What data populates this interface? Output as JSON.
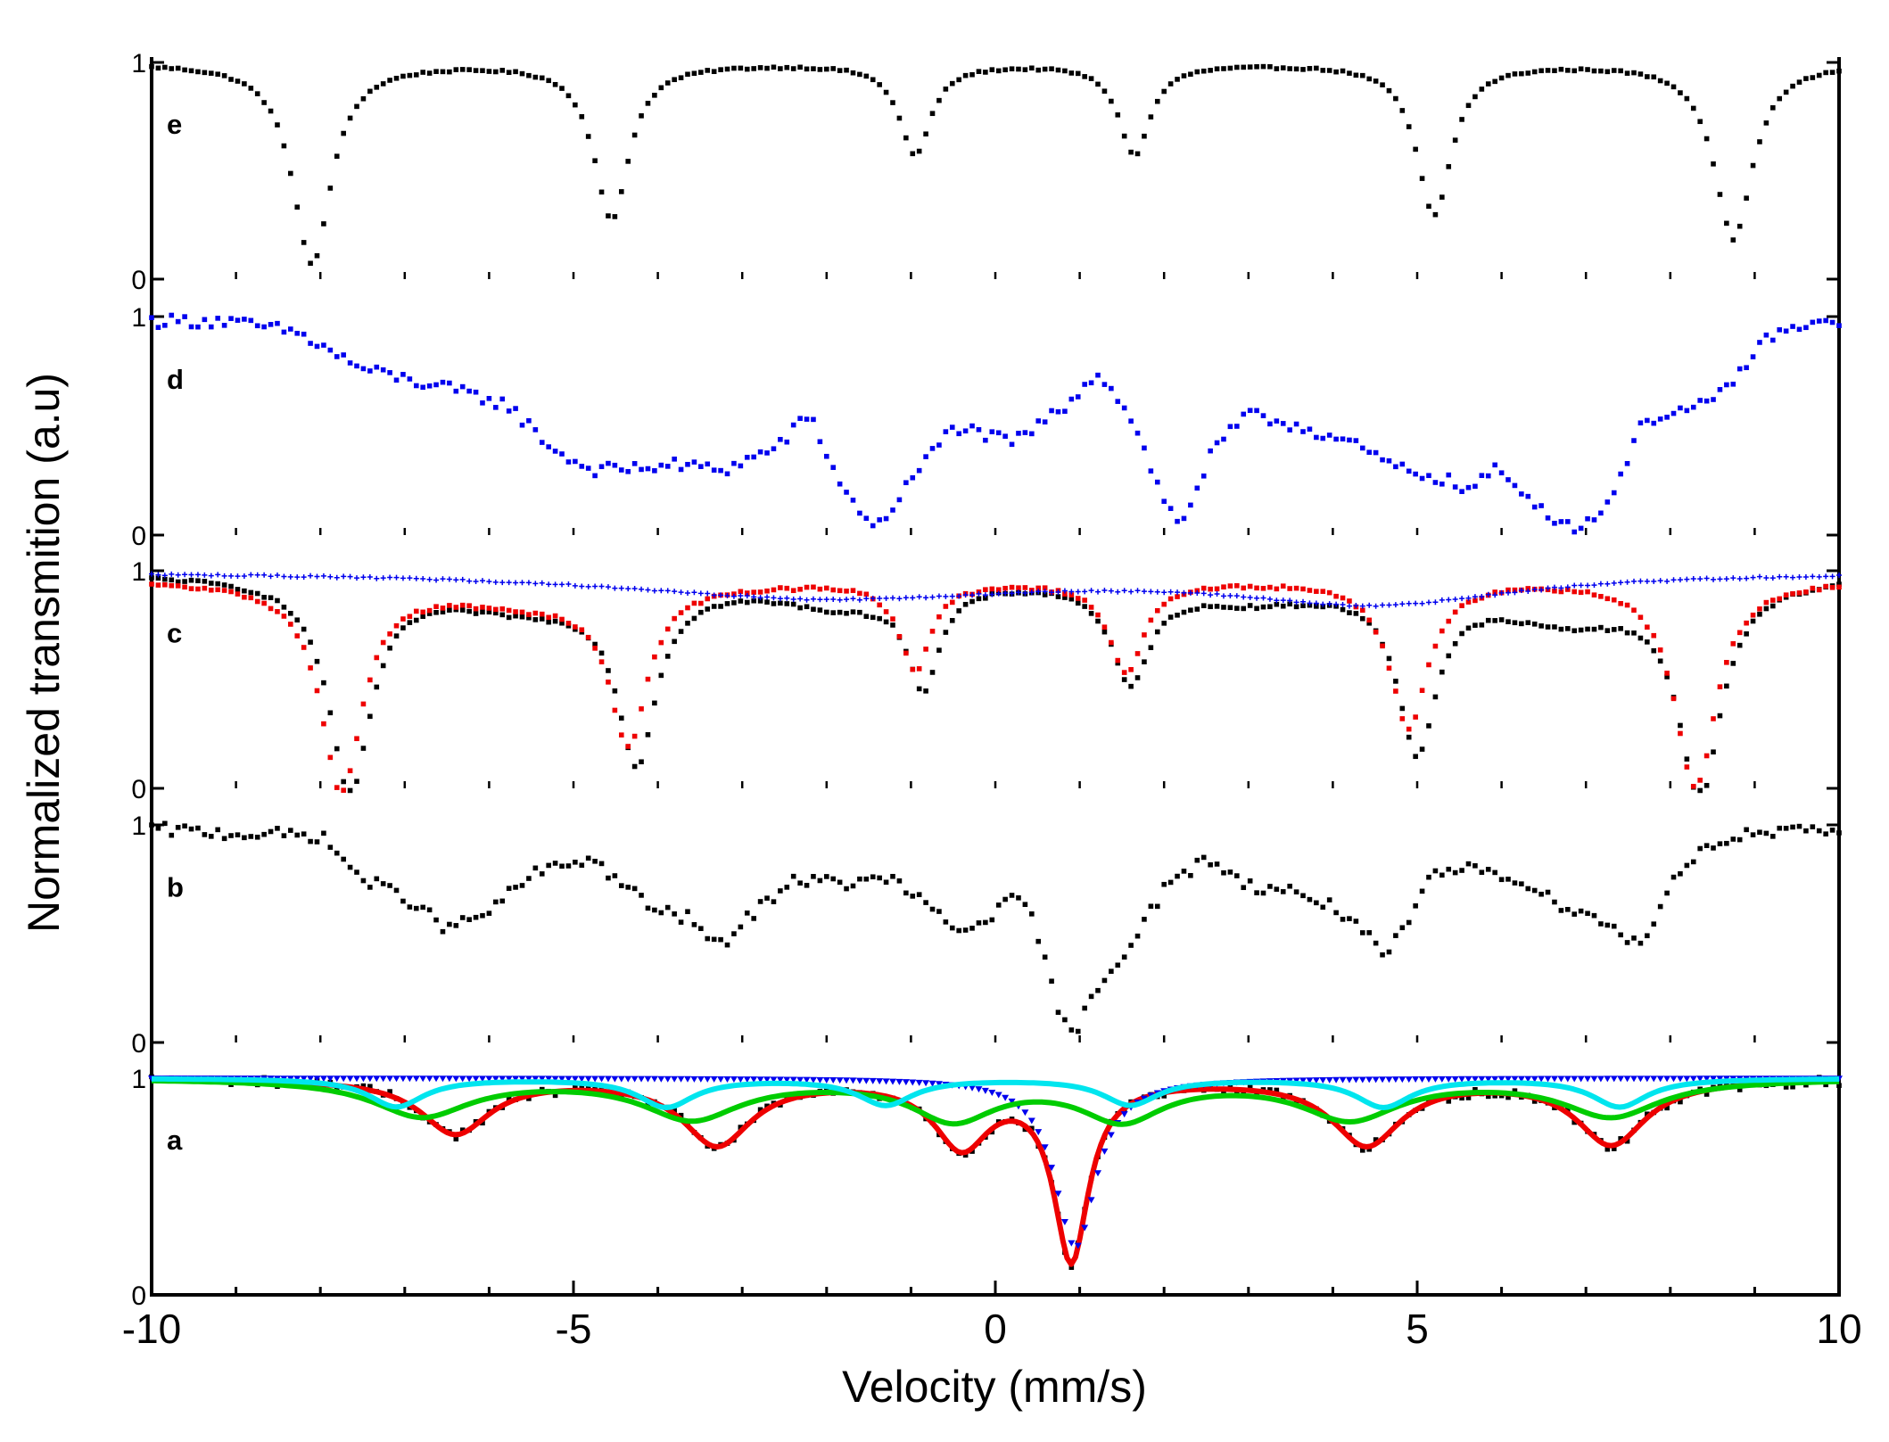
{
  "chart_data": {
    "type": "scatter",
    "xlabel": "Velocity (mm/s)",
    "ylabel": "Normalized transmition (a.u)",
    "xlim": [
      -10,
      10
    ],
    "xticks": [
      "-10",
      "-5",
      "0",
      "5",
      "10"
    ],
    "ylim": [
      0,
      1
    ],
    "yticks": [
      "0",
      "1"
    ],
    "grid": false,
    "colors": {
      "black": "#000000",
      "blue": "#0000ee",
      "red": "#ee0000",
      "green": "#00cc00",
      "cyan": "#00e5ee"
    },
    "panels": [
      {
        "label": "e",
        "series": [
          {
            "name": "e-data",
            "style": "points",
            "color": "black",
            "baseline": 1.0,
            "noise": 0.005,
            "peaks": [
              {
                "v": -8.1,
                "depth": 0.93,
                "w": 0.55
              },
              {
                "v": -4.55,
                "depth": 0.72,
                "w": 0.5
              },
              {
                "v": -0.95,
                "depth": 0.42,
                "w": 0.45
              },
              {
                "v": 1.65,
                "depth": 0.42,
                "w": 0.45
              },
              {
                "v": 5.2,
                "depth": 0.7,
                "w": 0.5
              },
              {
                "v": 8.75,
                "depth": 0.81,
                "w": 0.55
              }
            ]
          }
        ]
      },
      {
        "label": "d",
        "series": [
          {
            "name": "d-data",
            "style": "points",
            "color": "blue",
            "noise": 0.03,
            "x": [
              -10,
              -9.2,
              -8.3,
              -7.5,
              -6.5,
              -5.8,
              -5.2,
              -4.8,
              -4.5,
              -3.8,
              -3.2,
              -2.6,
              -2.2,
              -1.8,
              -1.4,
              -1.0,
              -0.5,
              0.2,
              0.8,
              1.2,
              1.6,
              2.0,
              2.2,
              2.6,
              3.0,
              3.6,
              4.2,
              4.8,
              5.3,
              5.6,
              5.9,
              6.3,
              6.8,
              7.2,
              7.7,
              8.5,
              9.2,
              10
            ],
            "y": [
              0.98,
              0.98,
              0.93,
              0.76,
              0.67,
              0.6,
              0.38,
              0.3,
              0.3,
              0.32,
              0.3,
              0.4,
              0.55,
              0.2,
              0.03,
              0.25,
              0.5,
              0.42,
              0.58,
              0.75,
              0.55,
              0.15,
              0.05,
              0.4,
              0.55,
              0.5,
              0.42,
              0.3,
              0.26,
              0.2,
              0.3,
              0.18,
              0.03,
              0.1,
              0.53,
              0.6,
              0.92,
              0.98
            ]
          }
        ]
      },
      {
        "label": "c",
        "series": [
          {
            "name": "c-black",
            "style": "points",
            "color": "black",
            "baseline": 1.0,
            "noise": 0.008,
            "peaks": [
              {
                "v": -7.65,
                "depth": 0.97,
                "w": 0.6
              },
              {
                "v": -4.25,
                "depth": 0.78,
                "w": 0.55
              },
              {
                "v": -0.85,
                "depth": 0.45,
                "w": 0.45
              },
              {
                "v": 1.6,
                "depth": 0.45,
                "w": 0.55
              },
              {
                "v": 5.0,
                "depth": 0.74,
                "w": 0.55
              },
              {
                "v": 8.35,
                "depth": 0.96,
                "w": 0.6
              },
              {
                "v": -5.5,
                "depth": 0.15,
                "w": 3.0
              },
              {
                "v": -1.8,
                "depth": 0.12,
                "w": 2.0
              },
              {
                "v": 3.0,
                "depth": 0.1,
                "w": 2.5
              },
              {
                "v": 6.8,
                "depth": 0.2,
                "w": 2.5
              }
            ]
          },
          {
            "name": "c-red",
            "style": "points",
            "color": "red",
            "baseline": 0.96,
            "noise": 0.008,
            "peaks": [
              {
                "v": -7.75,
                "depth": 0.95,
                "w": 0.6
              },
              {
                "v": -4.35,
                "depth": 0.7,
                "w": 0.55
              },
              {
                "v": -0.95,
                "depth": 0.4,
                "w": 0.45
              },
              {
                "v": 1.55,
                "depth": 0.42,
                "w": 0.5
              },
              {
                "v": 4.9,
                "depth": 0.67,
                "w": 0.55
              },
              {
                "v": 8.3,
                "depth": 0.95,
                "w": 0.6
              },
              {
                "v": -5.5,
                "depth": 0.1,
                "w": 2.5
              }
            ]
          },
          {
            "name": "c-blue",
            "style": "crosses",
            "color": "blue",
            "baseline": 1.0,
            "noise": 0.004,
            "peaks": [
              {
                "v": -2.0,
                "depth": 0.12,
                "w": 6.0
              },
              {
                "v": 4.5,
                "depth": 0.14,
                "w": 4.0
              }
            ]
          }
        ]
      },
      {
        "label": "b",
        "series": [
          {
            "name": "b-data",
            "style": "points",
            "color": "black",
            "noise": 0.03,
            "x": [
              -10,
              -9.0,
              -8.0,
              -7.5,
              -7.0,
              -6.5,
              -6.0,
              -5.5,
              -4.8,
              -4.5,
              -4.0,
              -3.6,
              -3.3,
              -2.8,
              -2.4,
              -1.8,
              -1.2,
              -0.8,
              -0.4,
              0.2,
              0.4,
              0.6,
              0.8,
              0.95,
              1.1,
              1.5,
              2.0,
              2.5,
              3.0,
              3.5,
              4.0,
              4.3,
              4.6,
              4.9,
              5.2,
              5.8,
              6.2,
              6.6,
              7.0,
              7.4,
              7.7,
              8.0,
              8.5,
              9.0,
              10
            ],
            "y": [
              0.98,
              0.96,
              0.95,
              0.75,
              0.67,
              0.52,
              0.6,
              0.77,
              0.85,
              0.75,
              0.6,
              0.57,
              0.43,
              0.62,
              0.75,
              0.73,
              0.75,
              0.62,
              0.5,
              0.65,
              0.62,
              0.35,
              0.1,
              0.0,
              0.2,
              0.4,
              0.7,
              0.85,
              0.72,
              0.7,
              0.62,
              0.55,
              0.38,
              0.55,
              0.78,
              0.8,
              0.75,
              0.65,
              0.6,
              0.5,
              0.45,
              0.75,
              0.92,
              0.96,
              0.97
            ]
          }
        ]
      },
      {
        "label": "a",
        "series": [
          {
            "name": "a-data",
            "style": "points",
            "color": "black",
            "baseline": 1.0,
            "noise": 0.02,
            "peaks": [
              {
                "v": -6.4,
                "depth": 0.25,
                "w": 1.0
              },
              {
                "v": -3.3,
                "depth": 0.3,
                "w": 1.0
              },
              {
                "v": -0.4,
                "depth": 0.3,
                "w": 0.8
              },
              {
                "v": 0.9,
                "depth": 0.82,
                "w": 0.5
              },
              {
                "v": 4.4,
                "depth": 0.3,
                "w": 1.0
              },
              {
                "v": 7.3,
                "depth": 0.3,
                "w": 1.0
              }
            ]
          },
          {
            "name": "a-red-fit",
            "style": "line",
            "color": "red",
            "baseline": 1.0,
            "peaks": [
              {
                "v": -6.4,
                "depth": 0.25,
                "w": 1.0
              },
              {
                "v": -3.3,
                "depth": 0.3,
                "w": 1.0
              },
              {
                "v": -0.4,
                "depth": 0.3,
                "w": 0.8
              },
              {
                "v": 0.9,
                "depth": 0.82,
                "w": 0.5
              },
              {
                "v": 4.4,
                "depth": 0.3,
                "w": 1.0
              },
              {
                "v": 7.3,
                "depth": 0.3,
                "w": 1.0
              }
            ]
          },
          {
            "name": "a-blue-doublet",
            "style": "triangles",
            "color": "blue",
            "baseline": 1.0,
            "peaks": [
              {
                "v": 0.95,
                "depth": 0.78,
                "w": 0.6
              }
            ]
          },
          {
            "name": "a-green-sextet",
            "style": "line",
            "color": "green",
            "baseline": 1.0,
            "peaks": [
              {
                "v": -6.8,
                "depth": 0.17,
                "w": 1.4
              },
              {
                "v": -3.6,
                "depth": 0.18,
                "w": 1.4
              },
              {
                "v": -0.5,
                "depth": 0.18,
                "w": 1.2
              },
              {
                "v": 1.5,
                "depth": 0.18,
                "w": 1.2
              },
              {
                "v": 4.2,
                "depth": 0.18,
                "w": 1.4
              },
              {
                "v": 7.3,
                "depth": 0.17,
                "w": 1.4
              }
            ]
          },
          {
            "name": "a-cyan-sextet",
            "style": "line",
            "color": "cyan",
            "baseline": 1.0,
            "peaks": [
              {
                "v": -7.1,
                "depth": 0.13,
                "w": 0.8
              },
              {
                "v": -3.9,
                "depth": 0.13,
                "w": 0.8
              },
              {
                "v": -1.3,
                "depth": 0.12,
                "w": 0.8
              },
              {
                "v": 1.6,
                "depth": 0.12,
                "w": 0.8
              },
              {
                "v": 4.6,
                "depth": 0.13,
                "w": 0.8
              },
              {
                "v": 7.4,
                "depth": 0.13,
                "w": 0.8
              }
            ]
          }
        ]
      }
    ]
  }
}
